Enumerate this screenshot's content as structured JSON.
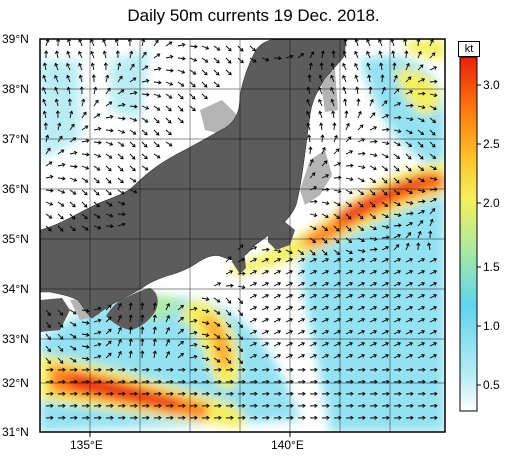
{
  "title": "Daily 50m currents 19 Dec. 2018.",
  "latitude_labels": [
    "39°N",
    "38°N",
    "37°N",
    "36°N",
    "35°N",
    "34°N",
    "33°N",
    "32°N",
    "31°N"
  ],
  "longitude_labels": [
    "135°E",
    "140°E"
  ],
  "colorbar": {
    "unit": "kt",
    "ticks": [
      "3.0",
      "2.5",
      "2.0",
      "1.5",
      "1.0",
      "0.5"
    ],
    "range": [
      0,
      3.25
    ],
    "colors": [
      "#ffffff",
      "#b8ecf5",
      "#5fd4ee",
      "#a9e9a3",
      "#f4f05a",
      "#ffc02a",
      "#ff7a10",
      "#e8200a"
    ]
  },
  "colors": {
    "land": "#5c5c5c",
    "shallow": "#b4b4b4",
    "sea": "#ffffff"
  }
}
